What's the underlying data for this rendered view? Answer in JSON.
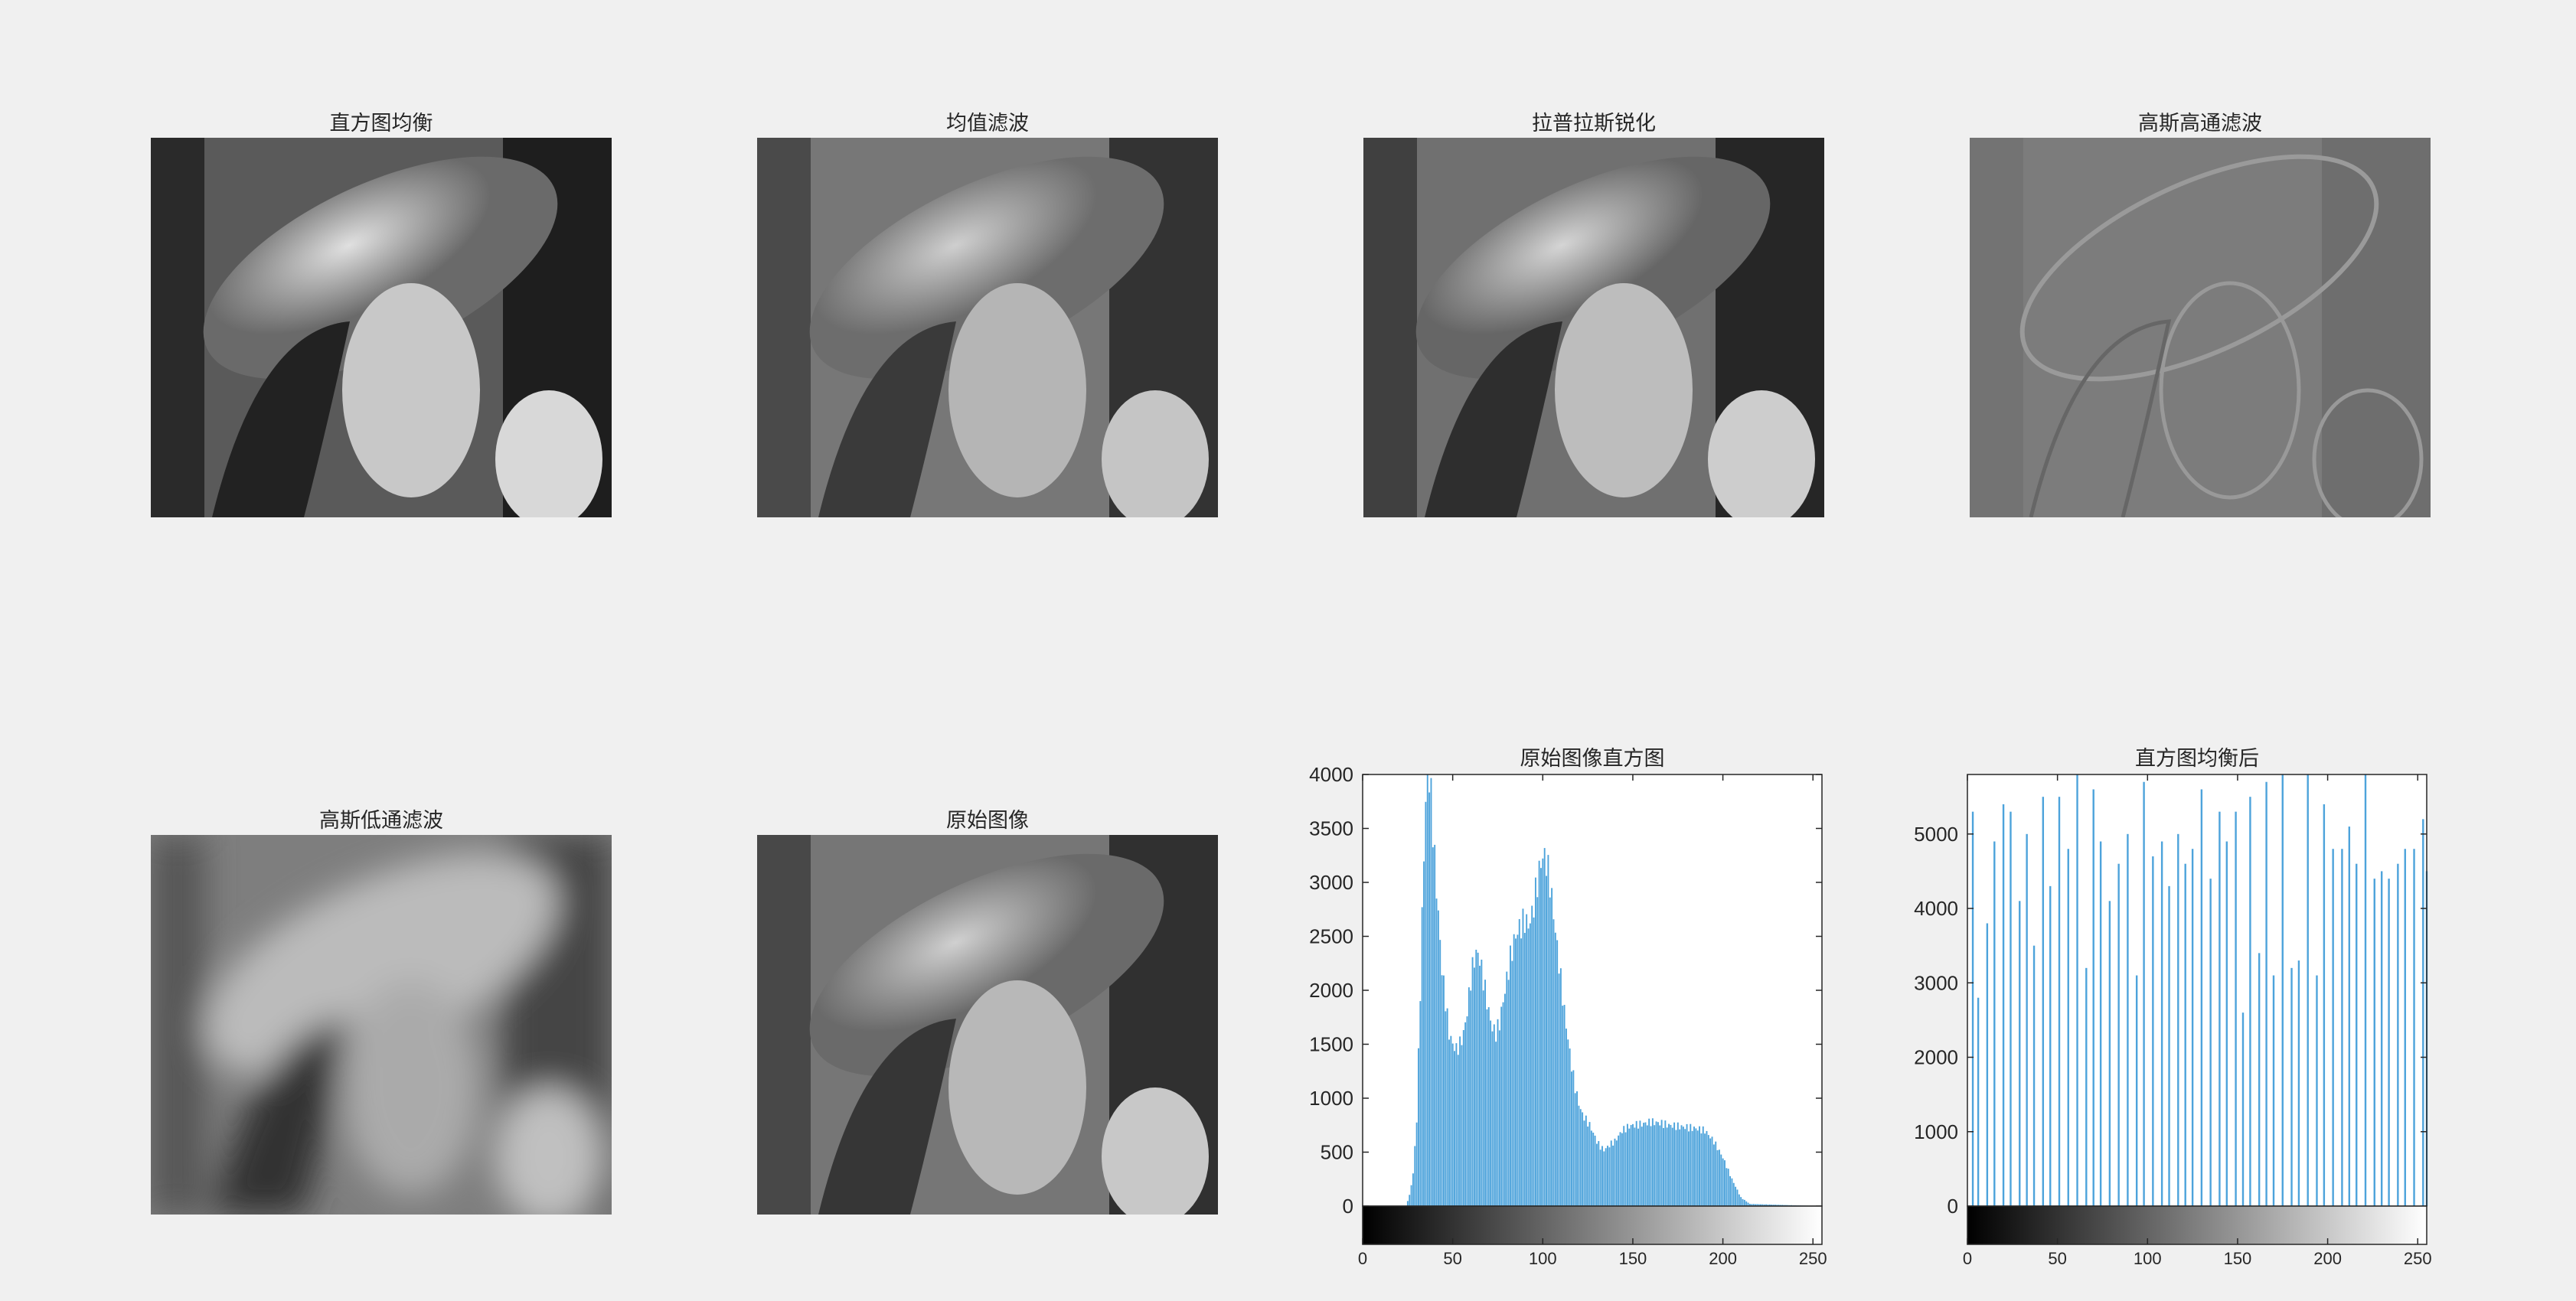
{
  "panels": [
    {
      "title": "直方图均衡"
    },
    {
      "title": "均值滤波"
    },
    {
      "title": "拉普拉斯锐化"
    },
    {
      "title": "高斯高通滤波"
    },
    {
      "title": "高斯低通滤波"
    },
    {
      "title": "原始图像"
    }
  ],
  "chart_data": [
    {
      "type": "bar",
      "title": "原始图像直方图",
      "xlabel": "",
      "ylabel": "",
      "xlim": [
        0,
        255
      ],
      "ylim": [
        0,
        4000
      ],
      "xticks": [
        0,
        50,
        100,
        150,
        200,
        250
      ],
      "yticks": [
        0,
        500,
        1000,
        1500,
        2000,
        2500,
        3000,
        3500,
        4000
      ],
      "bar_color": "#4da3db",
      "colorbar": "grayscale",
      "profile_x": [
        0,
        24,
        26,
        28,
        30,
        32,
        34,
        36,
        38,
        40,
        42,
        44,
        46,
        48,
        50,
        52,
        54,
        56,
        58,
        60,
        62,
        64,
        66,
        68,
        70,
        72,
        74,
        76,
        78,
        80,
        82,
        84,
        86,
        88,
        90,
        92,
        94,
        96,
        98,
        100,
        102,
        104,
        106,
        108,
        110,
        112,
        114,
        116,
        118,
        120,
        122,
        124,
        126,
        128,
        130,
        132,
        134,
        136,
        138,
        140,
        142,
        144,
        146,
        148,
        150,
        155,
        160,
        165,
        170,
        175,
        180,
        185,
        190,
        195,
        200,
        205,
        210,
        215,
        255
      ],
      "profile_y": [
        0,
        0,
        100,
        300,
        800,
        2000,
        3300,
        4100,
        3800,
        3200,
        2700,
        2200,
        1900,
        1600,
        1500,
        1450,
        1500,
        1600,
        1800,
        2100,
        2300,
        2350,
        2200,
        2000,
        1800,
        1650,
        1600,
        1700,
        1900,
        2100,
        2300,
        2450,
        2550,
        2600,
        2650,
        2600,
        2700,
        2900,
        3100,
        3250,
        3200,
        3000,
        2700,
        2400,
        2100,
        1800,
        1550,
        1300,
        1100,
        950,
        850,
        800,
        750,
        680,
        600,
        550,
        520,
        550,
        580,
        600,
        650,
        700,
        720,
        740,
        750,
        760,
        780,
        770,
        750,
        740,
        730,
        720,
        700,
        600,
        450,
        250,
        80,
        20,
        0
      ]
    },
    {
      "type": "bar",
      "title": "直方图均衡后",
      "xlabel": "",
      "ylabel": "",
      "xlim": [
        0,
        255
      ],
      "ylim": [
        0,
        5800
      ],
      "xticks": [
        0,
        50,
        100,
        150,
        200,
        250
      ],
      "yticks": [
        0,
        1000,
        2000,
        3000,
        4000,
        5000
      ],
      "bar_color": "#4da3db",
      "colorbar": "grayscale",
      "x": [
        3,
        6,
        11,
        15,
        20,
        24,
        29,
        33,
        37,
        42,
        46,
        51,
        56,
        61,
        66,
        70,
        74,
        79,
        84,
        89,
        94,
        98,
        103,
        108,
        112,
        117,
        121,
        125,
        130,
        135,
        140,
        144,
        149,
        153,
        157,
        162,
        166,
        170,
        175,
        180,
        184,
        189,
        194,
        198,
        203,
        208,
        212,
        216,
        221,
        226,
        230,
        234,
        239,
        243,
        248,
        253,
        255
      ],
      "values": [
        5300,
        2800,
        3800,
        4900,
        5400,
        5300,
        4100,
        5000,
        3500,
        5500,
        4300,
        5500,
        4800,
        5800,
        3200,
        5600,
        4900,
        4100,
        4600,
        5000,
        3100,
        5700,
        4700,
        4900,
        4300,
        5000,
        4600,
        4800,
        5600,
        4400,
        5300,
        4900,
        5300,
        2600,
        5500,
        3400,
        5700,
        3100,
        5800,
        3200,
        3300,
        5800,
        3100,
        5400,
        4800,
        4800,
        5100,
        4600,
        5800,
        4400,
        4500,
        4400,
        4600,
        4800,
        4800,
        5200,
        4500
      ]
    }
  ]
}
